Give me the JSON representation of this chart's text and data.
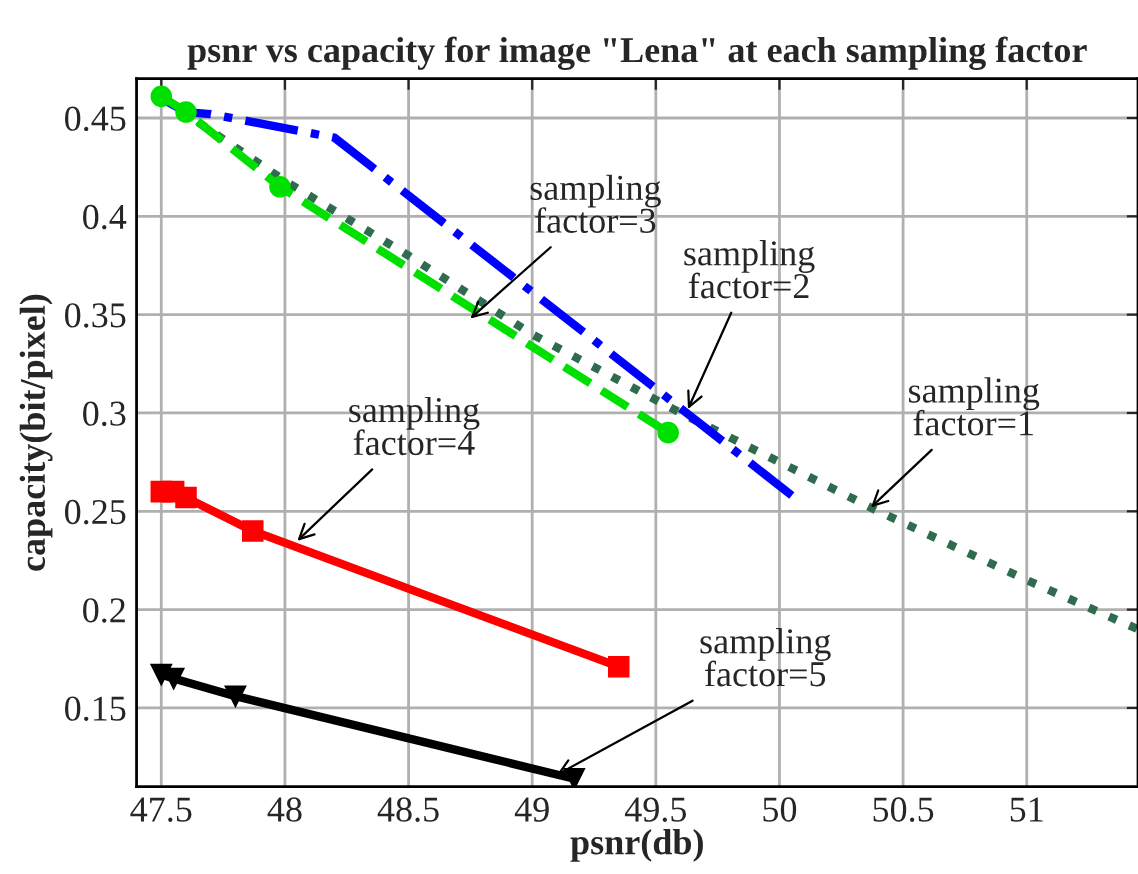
{
  "chart_data": {
    "type": "line",
    "title": "psnr vs capacity for image \"Lena\" at each sampling factor",
    "xlabel": "psnr(db)",
    "ylabel": "capacity(bit/pixel)",
    "xlim": [
      47.4,
      51.45
    ],
    "ylim": [
      0.11,
      0.47
    ],
    "xticks": [
      47.5,
      48,
      48.5,
      49,
      49.5,
      50,
      50.5,
      51
    ],
    "yticks": [
      0.15,
      0.2,
      0.25,
      0.3,
      0.35,
      0.4,
      0.45
    ],
    "grid": true,
    "series": [
      {
        "color": "#2f6b4f",
        "line_style": "dotted",
        "marker": "none",
        "x": [
          47.5,
          47.6,
          48.0,
          48.5,
          49.0,
          49.6,
          50.0,
          50.4,
          51.0,
          51.45
        ],
        "values": [
          0.46,
          0.452,
          0.418,
          0.38,
          0.34,
          0.3,
          0.275,
          0.25,
          0.215,
          0.19
        ]
      },
      {
        "color": "#0000ff",
        "line_style": "dashdot",
        "marker": "none",
        "x": [
          47.5,
          47.6,
          47.7,
          48.2,
          49.27,
          50.05
        ],
        "values": [
          0.46,
          0.453,
          0.452,
          0.44,
          0.335,
          0.258
        ]
      },
      {
        "color": "#00e000",
        "line_style": "dashed",
        "marker": "circle",
        "x": [
          47.5,
          47.6,
          47.98,
          49.55
        ],
        "values": [
          0.461,
          0.453,
          0.415,
          0.29
        ]
      },
      {
        "color": "#ff0000",
        "line_style": "solid",
        "marker": "square",
        "x": [
          47.5,
          47.55,
          47.6,
          47.87,
          49.35
        ],
        "values": [
          0.26,
          0.26,
          0.257,
          0.24,
          0.171
        ]
      },
      {
        "color": "#000000",
        "line_style": "solid",
        "marker": "triangle",
        "x": [
          47.5,
          47.55,
          47.8,
          49.17
        ],
        "values": [
          0.167,
          0.165,
          0.156,
          0.114
        ]
      }
    ],
    "annotations": [
      {
        "text": "sampling\nfactor=3",
        "x": 48.75,
        "y": 0.348
      },
      {
        "text": "sampling\nfactor=2",
        "x": 49.63,
        "y": 0.302
      },
      {
        "text": "sampling\nfactor=1",
        "x": 50.37,
        "y": 0.252
      },
      {
        "text": "sampling\nfactor=4",
        "x": 48.05,
        "y": 0.235
      },
      {
        "text": "sampling\nfactor=5",
        "x": 49.1,
        "y": 0.116
      }
    ]
  }
}
